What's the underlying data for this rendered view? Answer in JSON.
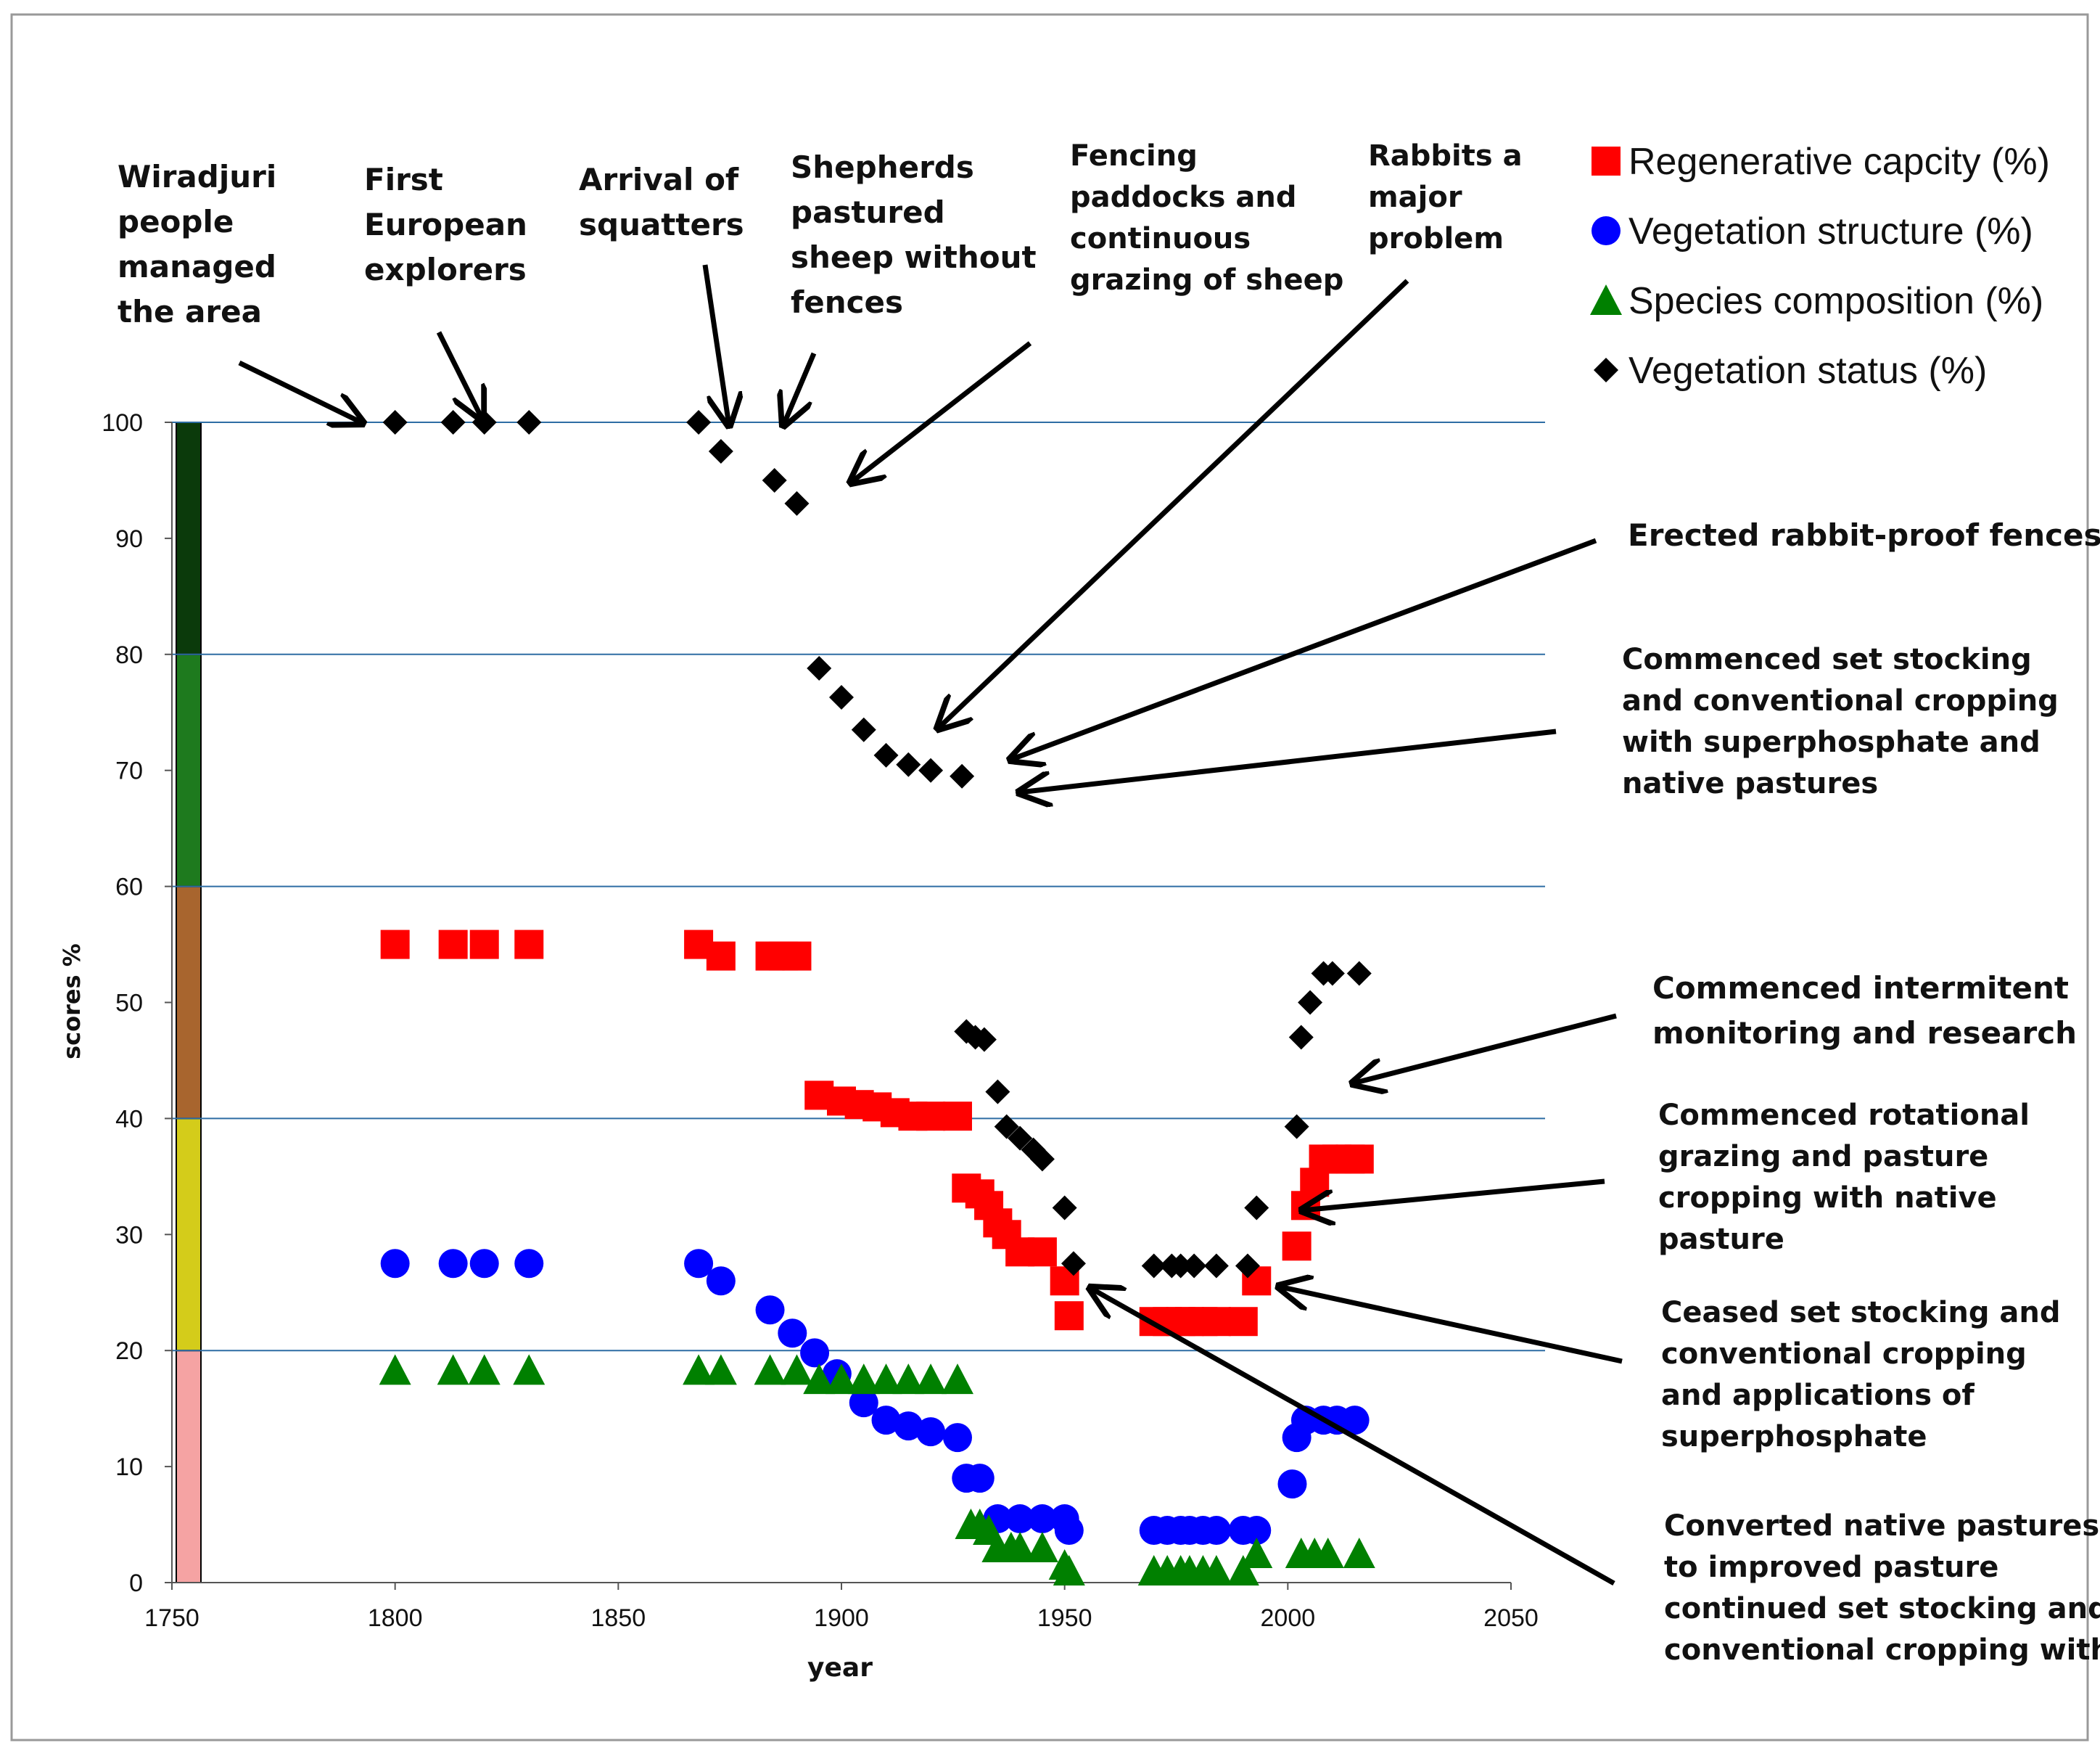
{
  "chart_data": {
    "type": "scatter",
    "title": "",
    "xlabel": "year",
    "ylabel": "scores %",
    "xlim": [
      1750,
      2050
    ],
    "ylim": [
      0,
      100
    ],
    "x_ticks": [
      "1750",
      "1800",
      "1850",
      "1900",
      "1950",
      "2000",
      "2050"
    ],
    "y_ticks": [
      "0",
      "10",
      "20",
      "30",
      "40",
      "50",
      "60",
      "70",
      "80",
      "90",
      "100"
    ],
    "gridlines_y": [
      20,
      40,
      60,
      80,
      100
    ],
    "grid_color": "#2e6da4",
    "condition_bands": [
      {
        "from": 0,
        "to": 20,
        "color": "#f5a3a3"
      },
      {
        "from": 20,
        "to": 40,
        "color": "#d4cc1a"
      },
      {
        "from": 40,
        "to": 60,
        "color": "#a8652e"
      },
      {
        "from": 60,
        "to": 80,
        "color": "#1e7a1e"
      },
      {
        "from": 80,
        "to": 100,
        "color": "#0b3a0b"
      }
    ],
    "series": [
      {
        "name": "Regenerative capcity (%)",
        "marker": "square",
        "color": "#ff0000",
        "x": [
          1800,
          1813,
          1820,
          1830,
          1868,
          1873,
          1884,
          1887,
          1890,
          1895,
          1900,
          1904,
          1908,
          1912,
          1916,
          1920,
          1926,
          1928,
          1931,
          1933,
          1935,
          1937,
          1940,
          1945,
          1950,
          1951,
          1970,
          1973,
          1976,
          1978,
          1981,
          1984,
          1990,
          1993,
          2002,
          2004,
          2006,
          2008,
          2011,
          2014,
          2016
        ],
        "y": [
          55,
          55,
          55,
          55,
          55,
          54,
          54,
          54,
          54,
          42,
          41.5,
          41.2,
          41,
          40.5,
          40.2,
          40.2,
          40.2,
          34,
          33.5,
          32.5,
          31,
          30,
          28.5,
          28.5,
          26,
          23,
          22.5,
          22.5,
          22.5,
          22.5,
          22.5,
          22.5,
          22.5,
          26,
          29,
          32.5,
          34.5,
          36.5,
          36.5,
          36.5,
          36.5
        ]
      },
      {
        "name": "Vegetation structure (%)",
        "marker": "circle",
        "color": "#0000ff",
        "x": [
          1800,
          1813,
          1820,
          1830,
          1868,
          1873,
          1884,
          1889,
          1894,
          1899,
          1905,
          1910,
          1915,
          1920,
          1926,
          1928,
          1931,
          1935,
          1940,
          1945,
          1950,
          1951,
          1970,
          1973,
          1976,
          1978,
          1981,
          1984,
          1990,
          1993,
          2001,
          2002,
          2004,
          2008,
          2011,
          2015
        ],
        "y": [
          27.5,
          27.5,
          27.5,
          27.5,
          27.5,
          26,
          23.5,
          21.5,
          19.8,
          18,
          15.5,
          14,
          13.5,
          13,
          12.5,
          9,
          9,
          5.5,
          5.5,
          5.5,
          5.5,
          4.5,
          4.5,
          4.5,
          4.5,
          4.5,
          4.5,
          4.5,
          4.5,
          4.5,
          8.5,
          12.5,
          14,
          14,
          14,
          14
        ]
      },
      {
        "name": "Species composition (%)",
        "marker": "triangle",
        "color": "#008000",
        "x": [
          1800,
          1813,
          1820,
          1830,
          1868,
          1873,
          1884,
          1890,
          1895,
          1900,
          1905,
          1910,
          1915,
          1920,
          1926,
          1929,
          1931,
          1933,
          1935,
          1938,
          1940,
          1945,
          1950,
          1951,
          1970,
          1973,
          1976,
          1978,
          1981,
          1984,
          1990,
          1993,
          2003,
          2006,
          2009,
          2016
        ],
        "y": [
          18.3,
          18.3,
          18.3,
          18.3,
          18.3,
          18.3,
          18.3,
          18.3,
          17.5,
          17.5,
          17.5,
          17.5,
          17.5,
          17.5,
          17.5,
          5,
          5,
          4.5,
          3,
          3,
          3,
          3,
          1.5,
          1,
          1,
          1,
          1,
          1,
          1,
          1,
          1,
          2.5,
          2.5,
          2.5,
          2.5,
          2.5
        ]
      },
      {
        "name": "Vegetation status (%)",
        "marker": "diamond",
        "color": "#000000",
        "x": [
          1800,
          1813,
          1820,
          1830,
          1868,
          1873,
          1885,
          1890,
          1895,
          1900,
          1905,
          1910,
          1915,
          1920,
          1927,
          1928,
          1930,
          1932,
          1935,
          1937,
          1940,
          1943,
          1945,
          1950,
          1952,
          1970,
          1974,
          1976,
          1979,
          1984,
          1991,
          1993,
          2002,
          2003,
          2005,
          2008,
          2010,
          2016
        ],
        "y": [
          100,
          100,
          100,
          100,
          100,
          97.5,
          95,
          93,
          78.8,
          76.3,
          73.5,
          71.3,
          70.5,
          70,
          69.5,
          47.5,
          47,
          46.8,
          42.3,
          39.3,
          38.3,
          37.3,
          36.5,
          32.3,
          27.5,
          27.3,
          27.3,
          27.3,
          27.3,
          27.3,
          27.3,
          32.3,
          39.3,
          47,
          50,
          52.5,
          52.5,
          52.5
        ]
      }
    ],
    "legend_position": "top-right",
    "annotations": [
      {
        "lines": [
          "Wiradjuri",
          "people",
          "managed",
          "the area"
        ]
      },
      {
        "lines": [
          "First",
          "European",
          "explorers"
        ]
      },
      {
        "lines": [
          "Arrival of",
          "squatters"
        ]
      },
      {
        "lines": [
          "Shepherds",
          "pastured",
          "sheep without",
          "fences"
        ]
      },
      {
        "lines": [
          "Fencing",
          "paddocks and",
          "continuous",
          "grazing of sheep"
        ]
      },
      {
        "lines": [
          "Rabbits a",
          "major",
          "problem"
        ]
      },
      {
        "lines": [
          "Erected rabbit-proof fences"
        ]
      },
      {
        "lines": [
          "Commenced  set stocking",
          "and conventional cropping",
          "with superphosphate and",
          "native pastures"
        ]
      },
      {
        "lines": [
          "Commenced intermitent",
          "monitoring and research"
        ]
      },
      {
        "lines": [
          "Commenced rotational",
          "grazing and pasture",
          "cropping with native",
          "pasture"
        ]
      },
      {
        "lines": [
          "Ceased set stocking and",
          "conventional cropping",
          "and applications of",
          "superphosphate"
        ]
      },
      {
        "lines": [
          "Converted native pastures",
          "to improved pasture",
          "continued set stocking and",
          "conventional cropping with"
        ]
      }
    ]
  }
}
